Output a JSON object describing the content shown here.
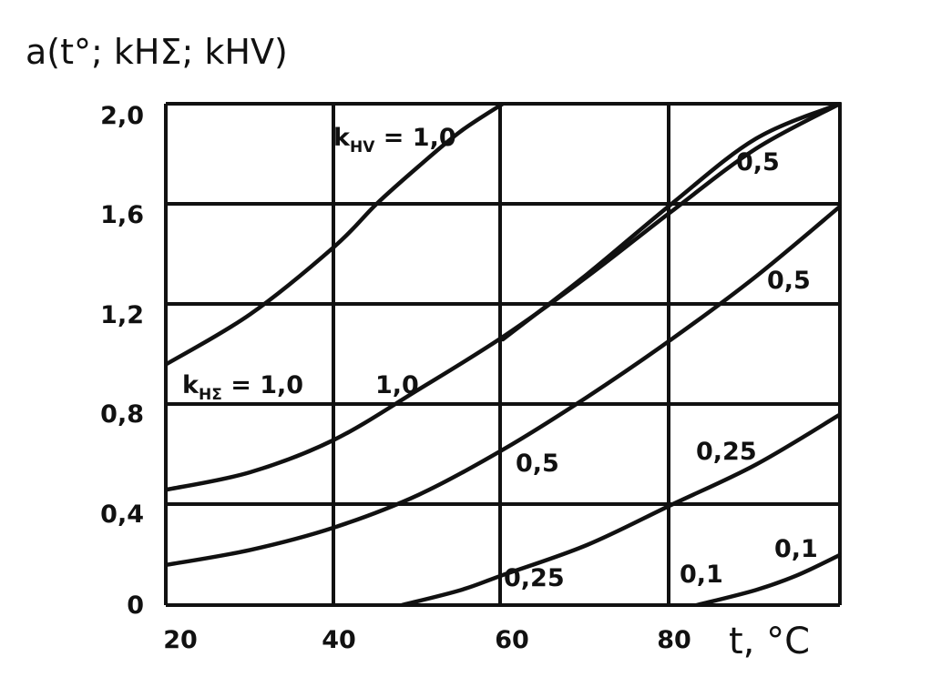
{
  "chart_data": {
    "type": "line",
    "ylabel": "a(t°; kHΣ; kHV)",
    "xlabel": "t, °C",
    "x_unit_label": "t, °C",
    "xlim": [
      20,
      100
    ],
    "ylim": [
      0,
      2.0
    ],
    "x_ticks": [
      "20",
      "40",
      "60",
      "80"
    ],
    "y_ticks": [
      "0",
      "0,4",
      "0,8",
      "1,2",
      "1,6",
      "2,0"
    ],
    "grid": true,
    "series": [
      {
        "name": "kHV = 1,0",
        "label": "kHV = 1,0",
        "x": [
          20,
          30,
          40,
          45,
          50,
          55,
          60
        ],
        "y": [
          0.96,
          1.16,
          1.43,
          1.6,
          1.75,
          1.89,
          2.0
        ]
      },
      {
        "name": "0,5",
        "label": "0,5",
        "x": [
          60,
          70,
          80,
          90,
          100
        ],
        "y": [
          1.06,
          1.32,
          1.6,
          1.86,
          2.0
        ]
      },
      {
        "name": "kHΣ = 1,0",
        "label": "kHΣ = 1,0",
        "x": [
          20,
          30,
          40,
          50,
          60,
          70,
          80,
          90,
          100
        ],
        "y": [
          0.46,
          0.53,
          0.66,
          0.86,
          1.07,
          1.31,
          1.57,
          1.82,
          2.0
        ]
      },
      {
        "name": "0,5",
        "label": "0,5",
        "x": [
          20,
          30,
          40,
          50,
          60,
          70,
          80,
          90,
          100
        ],
        "y": [
          0.16,
          0.22,
          0.31,
          0.44,
          0.62,
          0.83,
          1.06,
          1.31,
          1.59
        ]
      },
      {
        "name": "0,25",
        "label": "0,25",
        "x": [
          48,
          55,
          60,
          70,
          80,
          90,
          100
        ],
        "y": [
          0.0,
          0.06,
          0.12,
          0.24,
          0.4,
          0.56,
          0.76
        ]
      },
      {
        "name": "0,1",
        "label": "0,1",
        "x": [
          83,
          90,
          95,
          100
        ],
        "y": [
          0.0,
          0.06,
          0.12,
          0.2
        ]
      }
    ],
    "curve_labels": [
      {
        "text": "k",
        "sub": "HV",
        "rest": " = 1,0"
      },
      {
        "text": "0,5"
      },
      {
        "text": "k",
        "sub": "HΣ",
        "rest": " = 1,0"
      },
      {
        "text": "1,0"
      },
      {
        "text": "0,5"
      },
      {
        "text": "0,5"
      },
      {
        "text": "0,25"
      },
      {
        "text": "0,25"
      },
      {
        "text": "0,1"
      },
      {
        "text": "0,1"
      }
    ]
  }
}
